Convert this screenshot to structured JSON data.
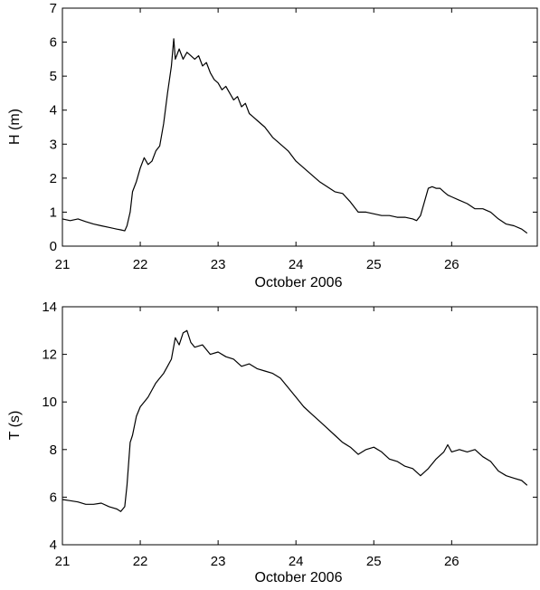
{
  "chart_data": [
    {
      "type": "line",
      "title": "",
      "xlabel": "October 2006",
      "ylabel": "H (m)",
      "xlim": [
        21,
        27.1
      ],
      "ylim": [
        0,
        7
      ],
      "xticks": [
        21,
        22,
        23,
        24,
        25,
        26
      ],
      "yticks": [
        0,
        1,
        2,
        3,
        4,
        5,
        6,
        7
      ],
      "grid": false,
      "color": "#000000",
      "series": [
        {
          "x": [
            21.0,
            21.1,
            21.2,
            21.3,
            21.4,
            21.5,
            21.6,
            21.7,
            21.75,
            21.8,
            21.83,
            21.87,
            21.9,
            21.95,
            22.0,
            22.05,
            22.1,
            22.15,
            22.2,
            22.25,
            22.3,
            22.35,
            22.4,
            22.43,
            22.45,
            22.5,
            22.55,
            22.6,
            22.65,
            22.7,
            22.75,
            22.8,
            22.85,
            22.9,
            22.95,
            23.0,
            23.05,
            23.1,
            23.15,
            23.2,
            23.25,
            23.3,
            23.35,
            23.4,
            23.45,
            23.5,
            23.6,
            23.7,
            23.8,
            23.9,
            24.0,
            24.1,
            24.2,
            24.3,
            24.4,
            24.5,
            24.6,
            24.7,
            24.8,
            24.9,
            25.0,
            25.1,
            25.2,
            25.3,
            25.4,
            25.5,
            25.55,
            25.6,
            25.65,
            25.7,
            25.75,
            25.8,
            25.85,
            25.9,
            25.95,
            26.0,
            26.1,
            26.2,
            26.3,
            26.4,
            26.5,
            26.6,
            26.7,
            26.8,
            26.9,
            26.97
          ],
          "values": [
            0.8,
            0.75,
            0.8,
            0.72,
            0.65,
            0.6,
            0.55,
            0.5,
            0.48,
            0.45,
            0.6,
            1.0,
            1.6,
            1.9,
            2.3,
            2.6,
            2.4,
            2.5,
            2.8,
            2.95,
            3.6,
            4.5,
            5.3,
            6.1,
            5.5,
            5.8,
            5.5,
            5.7,
            5.6,
            5.5,
            5.6,
            5.3,
            5.4,
            5.1,
            4.9,
            4.8,
            4.6,
            4.7,
            4.5,
            4.3,
            4.4,
            4.1,
            4.2,
            3.9,
            3.8,
            3.7,
            3.5,
            3.2,
            3.0,
            2.8,
            2.5,
            2.3,
            2.1,
            1.9,
            1.75,
            1.6,
            1.55,
            1.3,
            1.0,
            1.0,
            0.95,
            0.9,
            0.9,
            0.85,
            0.85,
            0.8,
            0.75,
            0.9,
            1.3,
            1.7,
            1.75,
            1.7,
            1.7,
            1.6,
            1.5,
            1.45,
            1.35,
            1.25,
            1.1,
            1.1,
            1.0,
            0.8,
            0.65,
            0.6,
            0.5,
            0.38
          ]
        }
      ]
    },
    {
      "type": "line",
      "title": "",
      "xlabel": "October 2006",
      "ylabel": "T (s)",
      "xlim": [
        21,
        27.1
      ],
      "ylim": [
        4,
        14
      ],
      "xticks": [
        21,
        22,
        23,
        24,
        25,
        26
      ],
      "yticks": [
        4,
        6,
        8,
        10,
        12,
        14
      ],
      "grid": false,
      "color": "#000000",
      "series": [
        {
          "x": [
            21.0,
            21.1,
            21.2,
            21.3,
            21.4,
            21.5,
            21.6,
            21.7,
            21.75,
            21.8,
            21.83,
            21.87,
            21.9,
            21.95,
            22.0,
            22.05,
            22.1,
            22.15,
            22.2,
            22.25,
            22.3,
            22.35,
            22.4,
            22.45,
            22.5,
            22.55,
            22.6,
            22.65,
            22.7,
            22.8,
            22.9,
            23.0,
            23.1,
            23.2,
            23.3,
            23.4,
            23.5,
            23.6,
            23.7,
            23.8,
            23.9,
            24.0,
            24.1,
            24.2,
            24.3,
            24.4,
            24.5,
            24.6,
            24.7,
            24.8,
            24.9,
            25.0,
            25.1,
            25.2,
            25.3,
            25.4,
            25.5,
            25.6,
            25.7,
            25.8,
            25.9,
            25.95,
            26.0,
            26.1,
            26.2,
            26.3,
            26.4,
            26.5,
            26.6,
            26.7,
            26.8,
            26.9,
            26.97
          ],
          "values": [
            5.9,
            5.85,
            5.8,
            5.7,
            5.7,
            5.75,
            5.6,
            5.5,
            5.4,
            5.6,
            6.5,
            8.3,
            8.6,
            9.4,
            9.8,
            10.0,
            10.2,
            10.5,
            10.8,
            11.0,
            11.2,
            11.5,
            11.8,
            12.7,
            12.4,
            12.9,
            13.0,
            12.5,
            12.3,
            12.4,
            12.0,
            12.1,
            11.9,
            11.8,
            11.5,
            11.6,
            11.4,
            11.3,
            11.2,
            11.0,
            10.6,
            10.2,
            9.8,
            9.5,
            9.2,
            8.9,
            8.6,
            8.3,
            8.1,
            7.8,
            8.0,
            8.1,
            7.9,
            7.6,
            7.5,
            7.3,
            7.2,
            6.9,
            7.2,
            7.6,
            7.9,
            8.2,
            7.9,
            8.0,
            7.9,
            8.0,
            7.7,
            7.5,
            7.1,
            6.9,
            6.8,
            6.7,
            6.5
          ]
        }
      ]
    }
  ]
}
